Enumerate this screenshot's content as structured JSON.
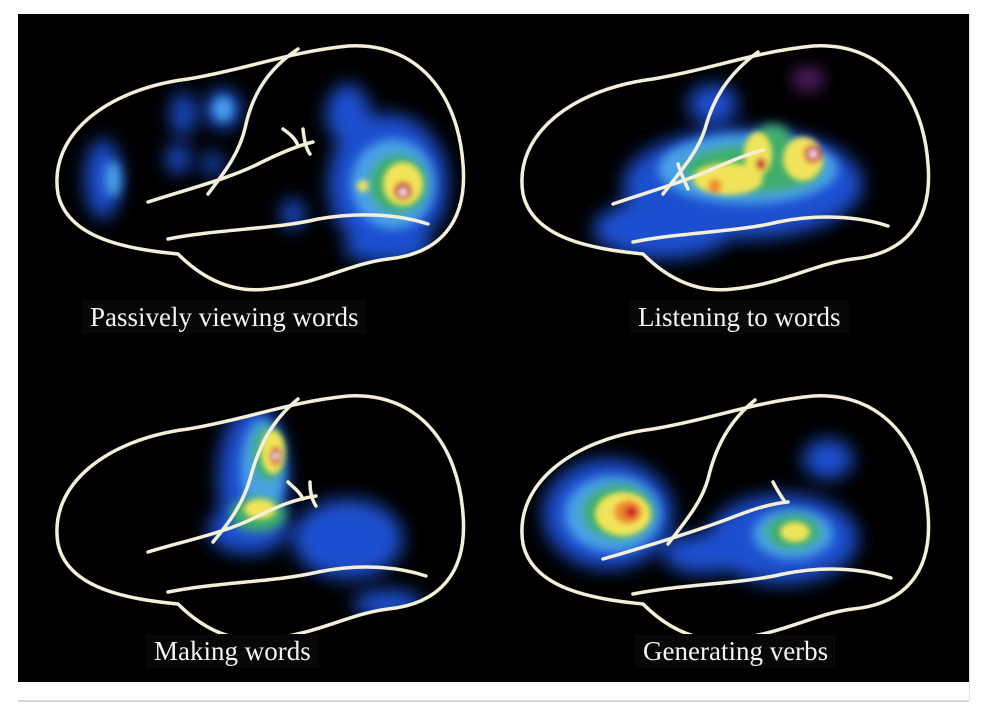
{
  "figure": {
    "background": "#000000",
    "outline_color": "#f3efd8",
    "activation_palette": [
      "#6a2a86",
      "#1f4fd0",
      "#4aa0e8",
      "#8fd6e6",
      "#3fae6a",
      "#f1e45a",
      "#f08a2a",
      "#c8102e"
    ],
    "panels": [
      {
        "id": "top-left",
        "caption": "Passively viewing words"
      },
      {
        "id": "top-right",
        "caption": "Listening to words"
      },
      {
        "id": "bottom-left",
        "caption": "Making words"
      },
      {
        "id": "bottom-right",
        "caption": "Generating verbs"
      }
    ]
  }
}
